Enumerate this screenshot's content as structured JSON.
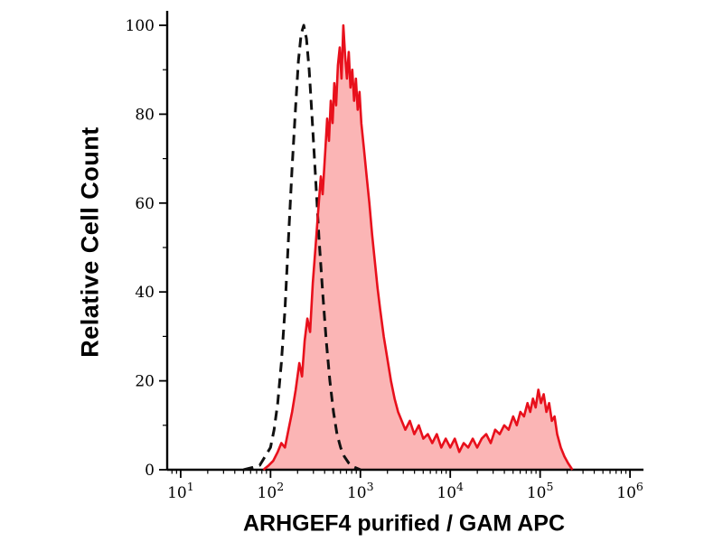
{
  "figure": {
    "background": "#ffffff"
  },
  "chart_data": {
    "type": "area",
    "subtype": "flow-cytometry-histogram-overlay",
    "title": "",
    "xlabel": "ARHGEF4 purified / GAM APC",
    "ylabel": "Relative Cell Count",
    "x_scale": "log10",
    "x_range_log10": [
      0.85,
      6.15
    ],
    "ylim": [
      0,
      100
    ],
    "x_tick_base": "10",
    "x_tick_exponents": [
      1,
      2,
      3,
      4,
      5,
      6
    ],
    "y_ticks": [
      0,
      20,
      40,
      60,
      80,
      100
    ],
    "y_minor_step": 10,
    "grid": false,
    "legend": "none",
    "axis_color": "#000000",
    "series": [
      {
        "name": "dashed-control",
        "line_style": "dashed",
        "color": "#111111",
        "fill": "none",
        "line_width": 3,
        "points": [
          [
            1.7,
            0
          ],
          [
            1.8,
            0.5
          ],
          [
            1.88,
            1
          ],
          [
            1.94,
            3
          ],
          [
            2.0,
            5
          ],
          [
            2.04,
            9
          ],
          [
            2.08,
            15
          ],
          [
            2.12,
            24
          ],
          [
            2.16,
            36
          ],
          [
            2.2,
            52
          ],
          [
            2.24,
            68
          ],
          [
            2.28,
            82
          ],
          [
            2.31,
            92
          ],
          [
            2.34,
            98
          ],
          [
            2.37,
            100
          ],
          [
            2.4,
            97
          ],
          [
            2.43,
            90
          ],
          [
            2.46,
            80
          ],
          [
            2.5,
            66
          ],
          [
            2.54,
            52
          ],
          [
            2.58,
            40
          ],
          [
            2.62,
            29
          ],
          [
            2.66,
            20
          ],
          [
            2.7,
            13
          ],
          [
            2.74,
            8
          ],
          [
            2.78,
            5
          ],
          [
            2.82,
            3
          ],
          [
            2.87,
            1.5
          ],
          [
            2.92,
            0.7
          ],
          [
            3.0,
            0
          ]
        ]
      },
      {
        "name": "red-stained-sample",
        "line_style": "solid",
        "color": "#e8101c",
        "fill": "rgba(246,90,90,0.45)",
        "line_width": 2.6,
        "points": [
          [
            1.92,
            0
          ],
          [
            1.98,
            1
          ],
          [
            2.03,
            2
          ],
          [
            2.08,
            4
          ],
          [
            2.12,
            6
          ],
          [
            2.16,
            5
          ],
          [
            2.2,
            9
          ],
          [
            2.24,
            13
          ],
          [
            2.28,
            18
          ],
          [
            2.32,
            24
          ],
          [
            2.35,
            21
          ],
          [
            2.38,
            29
          ],
          [
            2.41,
            34
          ],
          [
            2.44,
            31
          ],
          [
            2.47,
            42
          ],
          [
            2.5,
            50
          ],
          [
            2.53,
            58
          ],
          [
            2.56,
            66
          ],
          [
            2.58,
            62
          ],
          [
            2.61,
            72
          ],
          [
            2.63,
            79
          ],
          [
            2.65,
            74
          ],
          [
            2.67,
            83
          ],
          [
            2.69,
            78
          ],
          [
            2.71,
            87
          ],
          [
            2.73,
            82
          ],
          [
            2.75,
            91
          ],
          [
            2.77,
            95
          ],
          [
            2.79,
            88
          ],
          [
            2.81,
            100
          ],
          [
            2.83,
            93
          ],
          [
            2.85,
            88
          ],
          [
            2.87,
            94
          ],
          [
            2.89,
            86
          ],
          [
            2.91,
            90
          ],
          [
            2.93,
            83
          ],
          [
            2.95,
            88
          ],
          [
            2.97,
            81
          ],
          [
            2.99,
            85
          ],
          [
            3.01,
            78
          ],
          [
            3.04,
            72
          ],
          [
            3.07,
            66
          ],
          [
            3.1,
            60
          ],
          [
            3.13,
            53
          ],
          [
            3.16,
            47
          ],
          [
            3.19,
            41
          ],
          [
            3.22,
            36
          ],
          [
            3.26,
            30
          ],
          [
            3.3,
            25
          ],
          [
            3.34,
            20
          ],
          [
            3.38,
            16
          ],
          [
            3.42,
            13
          ],
          [
            3.46,
            11
          ],
          [
            3.5,
            9
          ],
          [
            3.55,
            11
          ],
          [
            3.6,
            8
          ],
          [
            3.65,
            10
          ],
          [
            3.7,
            7
          ],
          [
            3.75,
            8
          ],
          [
            3.8,
            6
          ],
          [
            3.85,
            8
          ],
          [
            3.9,
            5
          ],
          [
            3.95,
            7
          ],
          [
            4.0,
            5
          ],
          [
            4.05,
            7
          ],
          [
            4.1,
            4
          ],
          [
            4.15,
            6
          ],
          [
            4.2,
            5
          ],
          [
            4.25,
            7
          ],
          [
            4.3,
            5
          ],
          [
            4.35,
            7
          ],
          [
            4.4,
            8
          ],
          [
            4.45,
            6
          ],
          [
            4.5,
            9
          ],
          [
            4.55,
            8
          ],
          [
            4.6,
            10
          ],
          [
            4.65,
            9
          ],
          [
            4.7,
            12
          ],
          [
            4.74,
            10
          ],
          [
            4.78,
            13
          ],
          [
            4.82,
            12
          ],
          [
            4.86,
            15
          ],
          [
            4.89,
            13
          ],
          [
            4.92,
            16
          ],
          [
            4.95,
            14
          ],
          [
            4.98,
            18
          ],
          [
            5.01,
            15
          ],
          [
            5.04,
            17
          ],
          [
            5.07,
            13
          ],
          [
            5.1,
            15
          ],
          [
            5.13,
            11
          ],
          [
            5.16,
            12
          ],
          [
            5.19,
            8
          ],
          [
            5.23,
            5
          ],
          [
            5.27,
            3
          ],
          [
            5.31,
            1.5
          ],
          [
            5.36,
            0
          ]
        ]
      }
    ]
  }
}
